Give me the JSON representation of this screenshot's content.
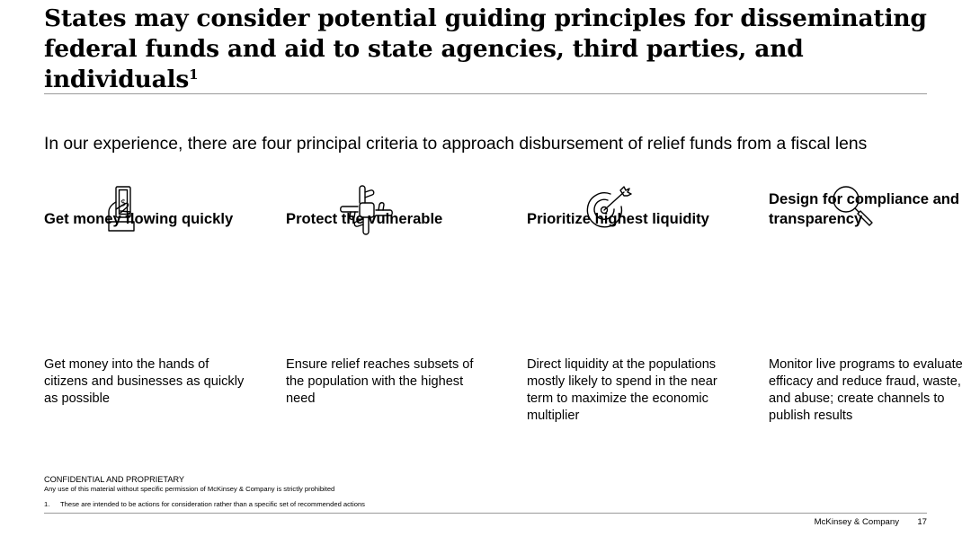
{
  "title": {
    "main": "States may consider potential guiding principles for disseminating federal funds and aid to state agencies, third parties, and individuals",
    "footnote_ref": "1"
  },
  "subtitle": "In our experience, there are four principal criteria to approach disbursement of relief funds from a fiscal lens",
  "principles": [
    {
      "icon": "hand-cash-icon",
      "heading": "Get money flowing quickly",
      "text": "Get money into the hands of citizens and businesses as quickly as possible"
    },
    {
      "icon": "linked-hands-icon",
      "heading": "Protect the vulnerable",
      "text": "Ensure relief reaches subsets of the population with the highest need"
    },
    {
      "icon": "target-arrow-icon",
      "heading": "Prioritize highest liquidity",
      "text": "Direct liquidity at the populations mostly likely to spend in the near term to maximize the economic multiplier"
    },
    {
      "icon": "magnifier-icon",
      "heading": "Design for compliance and transparency",
      "text": "Monitor live programs to evaluate efficacy and reduce fraud, waste, and abuse; create channels to publish results"
    }
  ],
  "footer": {
    "confidential_title": "CONFIDENTIAL AND PROPRIETARY",
    "confidential_text": "Any use of this material without specific permission of McKinsey & Company is strictly prohibited",
    "footnote_number": "1.",
    "footnote_text": "These are intended to be actions for consideration rather than a specific set of recommended actions",
    "brand": "McKinsey & Company",
    "page_number": "17"
  }
}
